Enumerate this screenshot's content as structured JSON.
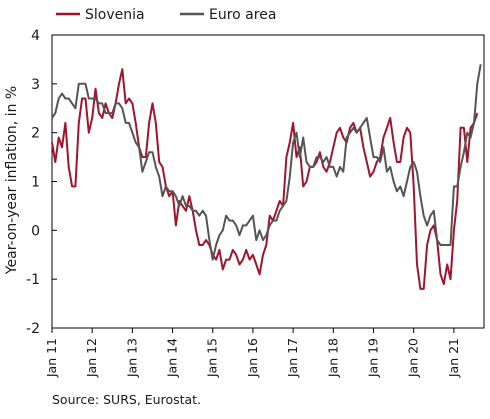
{
  "chart_data": {
    "type": "line",
    "title": "",
    "xlabel": "",
    "ylabel": "Year-on-year inflation, in %",
    "ylim": [
      -2,
      4
    ],
    "yticks": [
      -2,
      -1,
      0,
      1,
      2,
      3,
      4
    ],
    "xlim": [
      "2011-01",
      "2021-10"
    ],
    "xticks": [
      "Jan 11",
      "Jan 12",
      "Jan 13",
      "Jan 14",
      "Jan 15",
      "Jan 16",
      "Jan 17",
      "Jan 18",
      "Jan 19",
      "Jan 20",
      "Jan 21"
    ],
    "grid": false,
    "legend_position": "top-left",
    "series": [
      {
        "name": "Slovenia",
        "color": "#a3132b",
        "start": "2011-01",
        "values": [
          1.8,
          1.4,
          1.9,
          1.7,
          2.2,
          1.3,
          0.9,
          0.9,
          2.2,
          2.7,
          2.7,
          2.0,
          2.3,
          2.9,
          2.4,
          2.3,
          2.6,
          2.4,
          2.3,
          2.6,
          3.0,
          3.3,
          2.6,
          2.7,
          2.6,
          2.2,
          1.7,
          1.5,
          1.5,
          2.2,
          2.6,
          2.2,
          1.4,
          1.3,
          0.9,
          0.7,
          0.8,
          0.1,
          0.6,
          0.5,
          0.4,
          0.7,
          0.4,
          0.0,
          -0.3,
          -0.3,
          -0.2,
          -0.3,
          -0.5,
          -0.6,
          -0.4,
          -0.8,
          -0.6,
          -0.6,
          -0.4,
          -0.5,
          -0.7,
          -0.6,
          -0.4,
          -0.6,
          -0.5,
          -0.7,
          -0.9,
          -0.5,
          -0.3,
          0.3,
          0.2,
          0.4,
          0.6,
          0.5,
          1.5,
          1.8,
          2.2,
          1.5,
          1.7,
          0.9,
          1.0,
          1.3,
          1.3,
          1.4,
          1.6,
          1.3,
          1.2,
          1.4,
          1.7,
          2.0,
          2.1,
          1.9,
          1.8,
          2.1,
          2.2,
          2.0,
          2.1,
          1.7,
          1.4,
          1.1,
          1.2,
          1.4,
          1.5,
          1.9,
          2.1,
          2.3,
          1.8,
          1.4,
          1.4,
          1.9,
          2.1,
          2.0,
          0.9,
          -0.7,
          -1.2,
          -1.2,
          -0.3,
          0.0,
          0.1,
          -0.2,
          -0.9,
          -1.1,
          -0.7,
          -1.0,
          0.0,
          0.6,
          2.1,
          2.1,
          1.4,
          2.1,
          2.2,
          2.4
        ]
      },
      {
        "name": "Euro area",
        "color": "#555555",
        "start": "2011-01",
        "values": [
          2.3,
          2.4,
          2.7,
          2.8,
          2.7,
          2.7,
          2.6,
          2.5,
          3.0,
          3.0,
          3.0,
          2.7,
          2.7,
          2.7,
          2.6,
          2.6,
          2.4,
          2.4,
          2.4,
          2.6,
          2.6,
          2.5,
          2.2,
          2.2,
          2.0,
          1.8,
          1.7,
          1.2,
          1.4,
          1.6,
          1.6,
          1.3,
          1.1,
          0.7,
          0.9,
          0.8,
          0.8,
          0.7,
          0.5,
          0.7,
          0.5,
          0.5,
          0.4,
          0.4,
          0.3,
          0.4,
          0.3,
          -0.2,
          -0.6,
          -0.3,
          -0.1,
          0.0,
          0.3,
          0.2,
          0.2,
          0.1,
          -0.1,
          0.1,
          0.1,
          0.2,
          0.3,
          -0.2,
          0.0,
          -0.2,
          -0.1,
          0.1,
          0.2,
          0.2,
          0.4,
          0.5,
          0.6,
          1.1,
          1.8,
          2.0,
          1.5,
          1.9,
          1.4,
          1.3,
          1.3,
          1.5,
          1.5,
          1.4,
          1.5,
          1.3,
          1.3,
          1.1,
          1.3,
          1.2,
          1.9,
          2.0,
          2.1,
          2.0,
          2.1,
          2.2,
          2.3,
          1.9,
          1.5,
          1.5,
          1.4,
          1.7,
          1.2,
          1.3,
          1.0,
          0.8,
          0.9,
          0.7,
          1.0,
          1.3,
          1.4,
          1.2,
          0.7,
          0.3,
          0.1,
          0.3,
          0.4,
          -0.2,
          -0.3,
          -0.3,
          -0.3,
          -0.3,
          0.9,
          0.9,
          1.3,
          1.6,
          2.0,
          1.9,
          2.2,
          3.0,
          3.4
        ]
      }
    ],
    "source": "Source: SURS, Eurostat."
  }
}
